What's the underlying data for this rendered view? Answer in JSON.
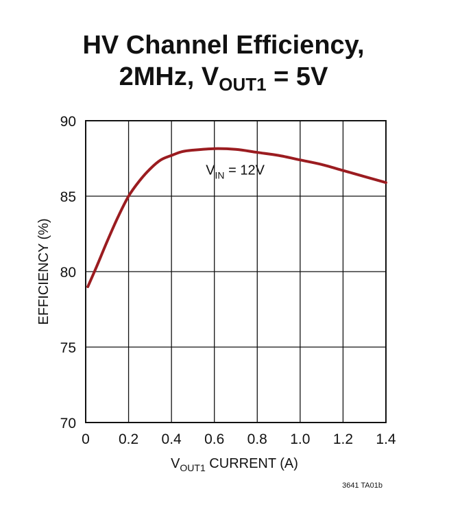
{
  "chart_data": {
    "type": "line",
    "title": {
      "line1": "HV Channel Efficiency,",
      "line2_prefix": "2MHz, V",
      "line2_sub": "OUT1",
      "line2_suffix": " = 5V"
    },
    "xlabel": {
      "prefix": "V",
      "sub": "OUT1",
      "suffix": " CURRENT (A)"
    },
    "ylabel": "EFFICIENCY (%)",
    "xlim": [
      0,
      1.4
    ],
    "ylim": [
      70,
      90
    ],
    "x_ticks": [
      0,
      0.2,
      0.4,
      0.6,
      0.8,
      1.0,
      1.2,
      1.4
    ],
    "x_tick_labels": [
      "0",
      "0.2",
      "0.4",
      "0.6",
      "0.8",
      "1.0",
      "1.2",
      "1.4"
    ],
    "y_ticks": [
      70,
      75,
      80,
      85,
      90
    ],
    "y_tick_labels": [
      "70",
      "75",
      "80",
      "85",
      "90"
    ],
    "grid": true,
    "series": [
      {
        "name": "VIN = 12V",
        "color": "#9b1c20",
        "x": [
          0.01,
          0.05,
          0.1,
          0.15,
          0.2,
          0.25,
          0.3,
          0.35,
          0.4,
          0.45,
          0.5,
          0.6,
          0.7,
          0.8,
          0.9,
          1.0,
          1.1,
          1.2,
          1.3,
          1.4
        ],
        "y": [
          79.0,
          80.3,
          82.0,
          83.6,
          85.0,
          86.0,
          86.8,
          87.4,
          87.7,
          87.95,
          88.05,
          88.15,
          88.1,
          87.9,
          87.7,
          87.4,
          87.1,
          86.7,
          86.3,
          85.9
        ]
      }
    ],
    "annotations": [
      {
        "prefix": "V",
        "sub": "IN",
        "suffix": " = 12V",
        "x": 0.56,
        "y": 86.75
      }
    ]
  },
  "figure_ref": "3641 TA01b"
}
